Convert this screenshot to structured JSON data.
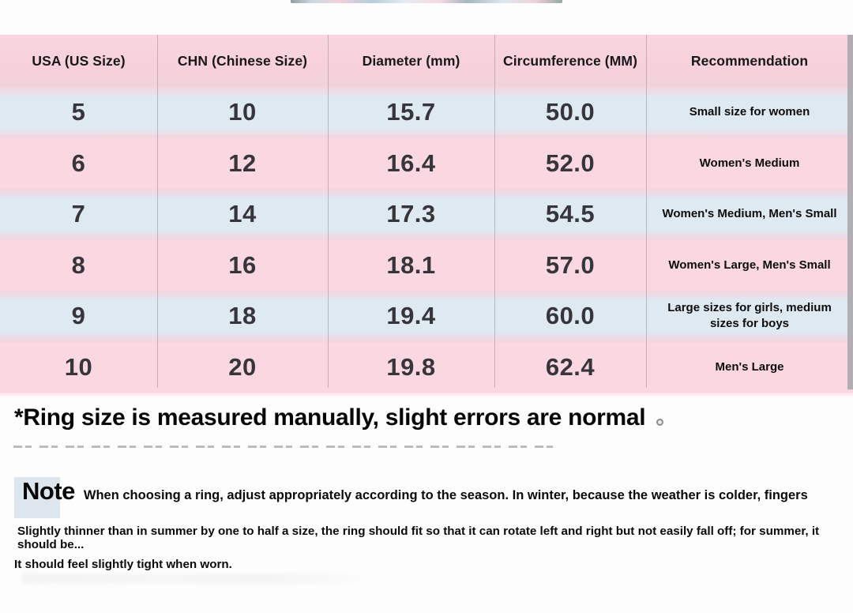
{
  "table": {
    "headers": [
      "USA (US Size)",
      "CHN (Chinese Size)",
      "Diameter (mm)",
      "Circumference (MM)",
      "Recommendation"
    ],
    "rows": [
      {
        "usa": "5",
        "chn": "10",
        "diameter": "15.7",
        "circumference": "50.0",
        "recommendation": "Small size for women"
      },
      {
        "usa": "6",
        "chn": "12",
        "diameter": "16.4",
        "circumference": "52.0",
        "recommendation": "Women's Medium"
      },
      {
        "usa": "7",
        "chn": "14",
        "diameter": "17.3",
        "circumference": "54.5",
        "recommendation": "Women's Medium, Men's Small"
      },
      {
        "usa": "8",
        "chn": "16",
        "diameter": "18.1",
        "circumference": "57.0",
        "recommendation": "Women's Large, Men's Small"
      },
      {
        "usa": "9",
        "chn": "18",
        "diameter": "19.4",
        "circumference": "60.0",
        "recommendation": "Large sizes for girls, medium sizes for boys"
      },
      {
        "usa": "10",
        "chn": "20",
        "diameter": "19.8",
        "circumference": "62.4",
        "recommendation": "Men's Large"
      }
    ]
  },
  "footnote": "*Ring size is measured manually, slight errors are normal",
  "note": {
    "label": "Note",
    "line1": "When choosing a ring, adjust appropriately according to the season. In winter, because the weather is colder, fingers",
    "line2": "Slightly thinner than in summer by one to half a size, the ring should fit so that it can rotate left and right but not easily fall off; for summer, it should be...",
    "line3": "It should feel slightly tight when worn."
  },
  "colors": {
    "header_pink": "#f7d1db",
    "row_pink": "#fbd8e1",
    "row_blue": "#dfe9f1",
    "note_highlight": "#dde6ee",
    "divider": "#7d828e",
    "scrollbar": "#a6a6ab"
  }
}
